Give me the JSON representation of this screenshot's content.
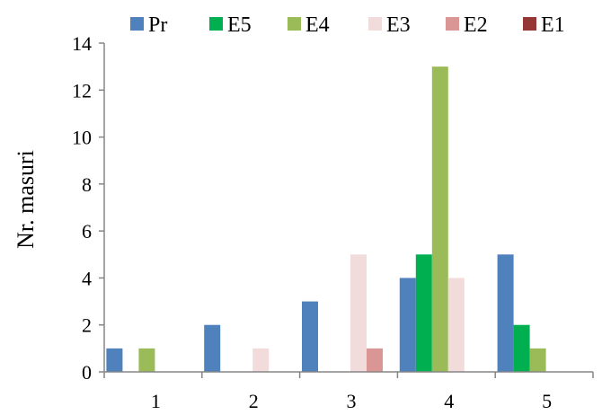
{
  "chart_data": {
    "type": "bar",
    "title": "",
    "xlabel": "",
    "ylabel": "Nr. masuri",
    "categories": [
      "1",
      "2",
      "3",
      "4",
      "5"
    ],
    "ylim": [
      0,
      14
    ],
    "yticks": [
      "0",
      "2",
      "4",
      "6",
      "8",
      "10",
      "12",
      "14"
    ],
    "grid": false,
    "legend": "top",
    "series": [
      {
        "name": "Pr",
        "color": "#4F81BD",
        "values": [
          1,
          2,
          3,
          4,
          5
        ]
      },
      {
        "name": "E5",
        "color": "#00B050",
        "values": [
          0,
          0,
          0,
          5,
          2
        ]
      },
      {
        "name": "E4",
        "color": "#9BBB59",
        "values": [
          1,
          0,
          0,
          13,
          1
        ]
      },
      {
        "name": "E3",
        "color": "#F2DCDB",
        "values": [
          0,
          1,
          5,
          4,
          0
        ]
      },
      {
        "name": "E2",
        "color": "#D99694",
        "values": [
          0,
          0,
          1,
          0,
          0
        ]
      },
      {
        "name": "E1",
        "color": "#953735",
        "values": [
          0,
          0,
          0,
          0,
          0
        ]
      }
    ]
  }
}
